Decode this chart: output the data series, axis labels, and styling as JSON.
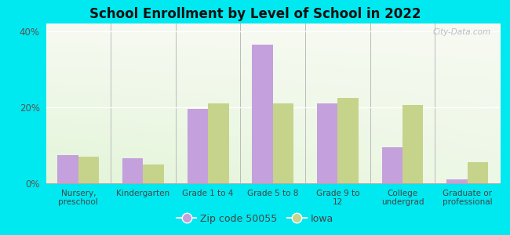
{
  "title": "School Enrollment by Level of School in 2022",
  "categories": [
    "Nursery,\npreschool",
    "Kindergarten",
    "Grade 1 to 4",
    "Grade 5 to 8",
    "Grade 9 to\n12",
    "College\nundergrad",
    "Graduate or\nprofessional"
  ],
  "zip_values": [
    7.5,
    6.5,
    19.5,
    36.5,
    21.0,
    9.5,
    1.0
  ],
  "iowa_values": [
    7.0,
    5.0,
    21.0,
    21.0,
    22.5,
    20.5,
    5.5
  ],
  "zip_color": "#c4a0dc",
  "iowa_color": "#c5d48a",
  "background_outer": "#00e8f0",
  "background_inner_top": "#e8f0e0",
  "background_inner_bottom": "#d0e8c8",
  "yticks": [
    0,
    20,
    40
  ],
  "ylim": [
    0,
    42
  ],
  "legend_zip_label": "Zip code 50055",
  "legend_iowa_label": "Iowa",
  "watermark": "City-Data.com"
}
